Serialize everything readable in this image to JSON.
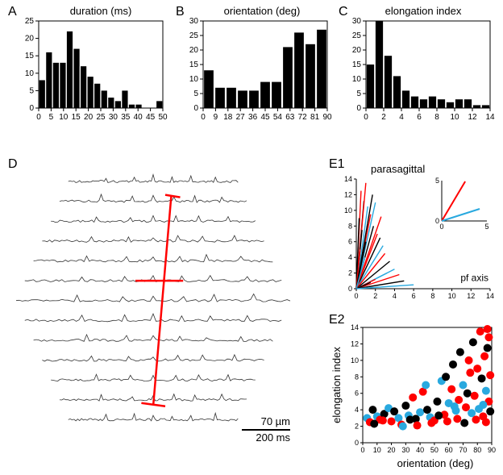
{
  "panelA": {
    "label": "A",
    "type": "histogram",
    "title": "duration (ms)",
    "bars": [
      8,
      16,
      13,
      13,
      22,
      17,
      12,
      9,
      7,
      5,
      3,
      2,
      5,
      1,
      1,
      0,
      0,
      2
    ],
    "bar_color": "#000000",
    "bg": "#ffffff",
    "xlim": [
      0,
      50
    ],
    "ylim": [
      0,
      25
    ],
    "yticks": [
      0,
      5,
      10,
      15,
      20,
      25
    ],
    "xticks": [
      0,
      5,
      10,
      15,
      20,
      25,
      30,
      35,
      40,
      45,
      50
    ],
    "title_fontsize": 13,
    "tick_fontsize": 10
  },
  "panelB": {
    "label": "B",
    "type": "histogram",
    "title": "orientation (deg)",
    "bars": [
      13,
      7,
      7,
      6,
      6,
      9,
      9,
      21,
      26,
      22,
      27
    ],
    "bar_color": "#000000",
    "bg": "#ffffff",
    "xlim": [
      0,
      90
    ],
    "ylim": [
      0,
      30
    ],
    "yticks": [
      0,
      5,
      10,
      15,
      20,
      25,
      30
    ],
    "xticks": [
      0,
      9,
      18,
      27,
      36,
      45,
      54,
      63,
      72,
      81,
      90
    ],
    "title_fontsize": 13,
    "tick_fontsize": 10
  },
  "panelC": {
    "label": "C",
    "type": "histogram",
    "title": "elongation index",
    "bars": [
      15,
      30,
      18,
      11,
      6,
      4,
      3,
      4,
      3,
      2,
      3,
      3,
      1,
      1
    ],
    "bar_color": "#000000",
    "bg": "#ffffff",
    "xlim": [
      0,
      14
    ],
    "ylim": [
      0,
      30
    ],
    "yticks": [
      0,
      5,
      10,
      15,
      20,
      25,
      30
    ],
    "xticks": [
      0,
      2,
      4,
      6,
      8,
      10,
      12,
      14
    ],
    "title_fontsize": 13,
    "tick_fontsize": 10
  },
  "panelD": {
    "label": "D",
    "type": "traces",
    "n_rows": 13,
    "trace_color": "#333333",
    "marker_color": "#ff0000",
    "scale_bar_x_label": "200 ms",
    "scale_bar_y_label": "70 µm"
  },
  "panelE1": {
    "label": "E1",
    "type": "vectors",
    "title_top": "parasagittal",
    "title_right": "pf axis",
    "xlim": [
      0,
      14
    ],
    "ylim": [
      0,
      14
    ],
    "xticks": [
      0,
      2,
      4,
      6,
      8,
      10,
      12,
      14
    ],
    "yticks": [
      0,
      2,
      4,
      6,
      8,
      10,
      12,
      14
    ],
    "inset": {
      "xlim": [
        0,
        5
      ],
      "ylim": [
        0,
        5
      ],
      "xticks": [
        0,
        5
      ],
      "yticks": [
        0,
        5
      ],
      "lines": [
        {
          "x2": 2.6,
          "y2": 4.9,
          "color": "#ff0000"
        },
        {
          "x2": 4.2,
          "y2": 1.5,
          "color": "#29a9df"
        }
      ]
    },
    "lines": [
      {
        "x2": 0.5,
        "y2": 12.5,
        "color": "#ff0000"
      },
      {
        "x2": 0.8,
        "y2": 11.2,
        "color": "#000000"
      },
      {
        "x2": 1.0,
        "y2": 13.5,
        "color": "#ff0000"
      },
      {
        "x2": 1.2,
        "y2": 10.5,
        "color": "#29a9df"
      },
      {
        "x2": 0.3,
        "y2": 9.0,
        "color": "#000000"
      },
      {
        "x2": 1.5,
        "y2": 9.5,
        "color": "#ff0000"
      },
      {
        "x2": 1.8,
        "y2": 8.0,
        "color": "#000000"
      },
      {
        "x2": 2.0,
        "y2": 11.0,
        "color": "#29a9df"
      },
      {
        "x2": 0.6,
        "y2": 7.5,
        "color": "#000000"
      },
      {
        "x2": 2.2,
        "y2": 7.0,
        "color": "#ff0000"
      },
      {
        "x2": 2.5,
        "y2": 6.5,
        "color": "#000000"
      },
      {
        "x2": 2.8,
        "y2": 5.5,
        "color": "#29a9df"
      },
      {
        "x2": 3.0,
        "y2": 4.5,
        "color": "#ff0000"
      },
      {
        "x2": 3.5,
        "y2": 3.5,
        "color": "#000000"
      },
      {
        "x2": 4.0,
        "y2": 2.5,
        "color": "#29a9df"
      },
      {
        "x2": 4.5,
        "y2": 1.8,
        "color": "#ff0000"
      },
      {
        "x2": 5.0,
        "y2": 1.0,
        "color": "#000000"
      },
      {
        "x2": 3.2,
        "y2": 2.0,
        "color": "#29a9df"
      },
      {
        "x2": 2.0,
        "y2": 1.2,
        "color": "#ff0000"
      },
      {
        "x2": 1.5,
        "y2": 0.8,
        "color": "#000000"
      },
      {
        "x2": 6.0,
        "y2": 0.5,
        "color": "#29a9df"
      },
      {
        "x2": 0.4,
        "y2": 5.0,
        "color": "#ff0000"
      },
      {
        "x2": 1.0,
        "y2": 6.0,
        "color": "#000000"
      },
      {
        "x2": 2.6,
        "y2": 9.2,
        "color": "#ff0000"
      },
      {
        "x2": 1.7,
        "y2": 12.0,
        "color": "#000000"
      },
      {
        "x2": 0.9,
        "y2": 4.0,
        "color": "#29a9df"
      }
    ]
  },
  "panelE2": {
    "label": "E2",
    "type": "scatter",
    "xlabel": "orientation (deg)",
    "ylabel": "elongation index",
    "xlim": [
      0,
      90
    ],
    "ylim": [
      0,
      14
    ],
    "xticks": [
      0,
      10,
      20,
      30,
      40,
      50,
      60,
      70,
      80,
      90
    ],
    "yticks": [
      0,
      2,
      4,
      6,
      8,
      10,
      12,
      14
    ],
    "marker_radius": 5,
    "colors": {
      "black": "#000000",
      "red": "#ff0000",
      "blue": "#29a9df"
    },
    "points": [
      {
        "x": 3,
        "y": 3,
        "c": "blue"
      },
      {
        "x": 5,
        "y": 2.5,
        "c": "red"
      },
      {
        "x": 7,
        "y": 4,
        "c": "black"
      },
      {
        "x": 10,
        "y": 3.2,
        "c": "blue"
      },
      {
        "x": 12,
        "y": 2.8,
        "c": "red"
      },
      {
        "x": 15,
        "y": 3.5,
        "c": "black"
      },
      {
        "x": 18,
        "y": 4.2,
        "c": "blue"
      },
      {
        "x": 20,
        "y": 2.6,
        "c": "red"
      },
      {
        "x": 22,
        "y": 3.8,
        "c": "black"
      },
      {
        "x": 25,
        "y": 3.0,
        "c": "blue"
      },
      {
        "x": 27,
        "y": 2.2,
        "c": "red"
      },
      {
        "x": 30,
        "y": 4.5,
        "c": "black"
      },
      {
        "x": 32,
        "y": 3.3,
        "c": "blue"
      },
      {
        "x": 35,
        "y": 5.5,
        "c": "red"
      },
      {
        "x": 37,
        "y": 2.9,
        "c": "black"
      },
      {
        "x": 40,
        "y": 3.7,
        "c": "blue"
      },
      {
        "x": 42,
        "y": 6.2,
        "c": "red"
      },
      {
        "x": 45,
        "y": 4.0,
        "c": "black"
      },
      {
        "x": 47,
        "y": 3.1,
        "c": "blue"
      },
      {
        "x": 50,
        "y": 2.7,
        "c": "red"
      },
      {
        "x": 52,
        "y": 5.0,
        "c": "black"
      },
      {
        "x": 55,
        "y": 7.5,
        "c": "blue"
      },
      {
        "x": 57,
        "y": 3.4,
        "c": "red"
      },
      {
        "x": 58,
        "y": 8.0,
        "c": "black"
      },
      {
        "x": 60,
        "y": 4.8,
        "c": "blue"
      },
      {
        "x": 62,
        "y": 6.5,
        "c": "red"
      },
      {
        "x": 63,
        "y": 9.5,
        "c": "black"
      },
      {
        "x": 65,
        "y": 3.9,
        "c": "blue"
      },
      {
        "x": 67,
        "y": 5.2,
        "c": "red"
      },
      {
        "x": 68,
        "y": 11.0,
        "c": "black"
      },
      {
        "x": 70,
        "y": 7.0,
        "c": "blue"
      },
      {
        "x": 72,
        "y": 4.3,
        "c": "red"
      },
      {
        "x": 73,
        "y": 6.0,
        "c": "black"
      },
      {
        "x": 75,
        "y": 8.5,
        "c": "red"
      },
      {
        "x": 76,
        "y": 3.6,
        "c": "blue"
      },
      {
        "x": 77,
        "y": 12.2,
        "c": "black"
      },
      {
        "x": 78,
        "y": 5.7,
        "c": "red"
      },
      {
        "x": 80,
        "y": 9.0,
        "c": "red"
      },
      {
        "x": 81,
        "y": 4.1,
        "c": "blue"
      },
      {
        "x": 82,
        "y": 13.5,
        "c": "red"
      },
      {
        "x": 83,
        "y": 7.8,
        "c": "black"
      },
      {
        "x": 84,
        "y": 3.2,
        "c": "red"
      },
      {
        "x": 85,
        "y": 10.5,
        "c": "red"
      },
      {
        "x": 86,
        "y": 6.3,
        "c": "blue"
      },
      {
        "x": 87,
        "y": 11.5,
        "c": "black"
      },
      {
        "x": 88,
        "y": 5.0,
        "c": "red"
      },
      {
        "x": 89,
        "y": 8.2,
        "c": "red"
      },
      {
        "x": 88,
        "y": 12.8,
        "c": "red"
      },
      {
        "x": 89,
        "y": 3.8,
        "c": "black"
      },
      {
        "x": 86,
        "y": 2.5,
        "c": "red"
      },
      {
        "x": 84,
        "y": 4.6,
        "c": "blue"
      },
      {
        "x": 79,
        "y": 2.8,
        "c": "red"
      },
      {
        "x": 74,
        "y": 10.0,
        "c": "red"
      },
      {
        "x": 71,
        "y": 2.4,
        "c": "black"
      },
      {
        "x": 66,
        "y": 2.9,
        "c": "red"
      },
      {
        "x": 64,
        "y": 4.4,
        "c": "blue"
      },
      {
        "x": 59,
        "y": 2.6,
        "c": "red"
      },
      {
        "x": 53,
        "y": 3.3,
        "c": "black"
      },
      {
        "x": 48,
        "y": 2.4,
        "c": "red"
      },
      {
        "x": 44,
        "y": 7.0,
        "c": "blue"
      },
      {
        "x": 38,
        "y": 2.1,
        "c": "red"
      },
      {
        "x": 33,
        "y": 2.8,
        "c": "black"
      },
      {
        "x": 28,
        "y": 2.0,
        "c": "blue"
      },
      {
        "x": 8,
        "y": 2.3,
        "c": "black"
      },
      {
        "x": 14,
        "y": 2.7,
        "c": "red"
      },
      {
        "x": 87,
        "y": 13.8,
        "c": "red"
      }
    ]
  }
}
